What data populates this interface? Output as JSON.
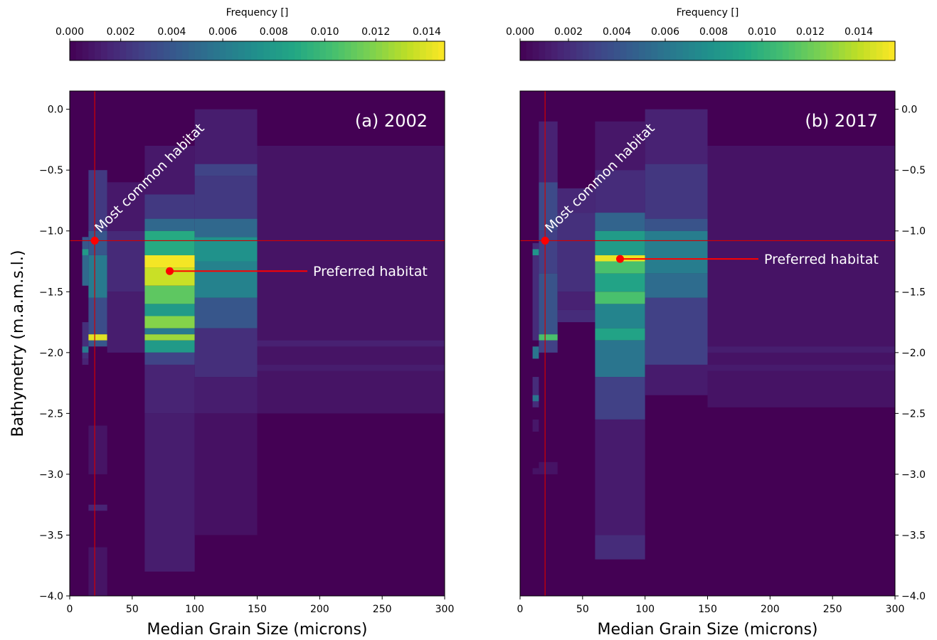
{
  "chart_data": [
    {
      "type": "heatmap",
      "panel_label": "(a) 2002",
      "xlabel": "Median Grain Size (microns)",
      "ylabel": "Bathymetry (m.a.m.s.l.)",
      "xlim": [
        0,
        300
      ],
      "ylim": [
        -4.0,
        0.15
      ],
      "xticks": [
        0,
        50,
        100,
        150,
        200,
        250,
        300
      ],
      "yticks": [
        0.0,
        -0.5,
        -1.0,
        -1.5,
        -2.0,
        -2.5,
        -3.0,
        -3.5,
        -4.0
      ],
      "ytick_side": "left",
      "colorbar": {
        "label": "Frequency []",
        "range": [
          0,
          0.0147
        ],
        "ticks": [
          "0.000",
          "0.002",
          "0.004",
          "0.006",
          "0.008",
          "0.010",
          "0.012",
          "0.014"
        ],
        "colormap": "viridis"
      },
      "columns": [
        {
          "x0": 10,
          "x1": 15,
          "cells": [
            [
              -1.05,
              -1.2,
              0.004
            ],
            [
              -1.15,
              -1.2,
              0.008
            ],
            [
              -1.2,
              -1.45,
              0.005
            ],
            [
              -1.75,
              -2.05,
              0.002
            ],
            [
              -1.95,
              -2.0,
              0.006
            ],
            [
              -2.05,
              -2.1,
              0.0015
            ]
          ]
        },
        {
          "x0": 15,
          "x1": 30,
          "cells": [
            [
              -0.5,
              -1.0,
              0.0025
            ],
            [
              -1.0,
              -1.2,
              0.004
            ],
            [
              -1.2,
              -1.55,
              0.006
            ],
            [
              -1.55,
              -1.85,
              0.0035
            ],
            [
              -1.85,
              -1.9,
              0.014
            ],
            [
              -1.9,
              -1.95,
              0.004
            ],
            [
              -2.6,
              -3.0,
              0.0008
            ],
            [
              -3.25,
              -3.3,
              0.0015
            ],
            [
              -3.6,
              -4.0,
              0.0008
            ]
          ]
        },
        {
          "x0": 30,
          "x1": 60,
          "cells": [
            [
              -0.6,
              -1.0,
              0.001
            ],
            [
              -1.0,
              -1.5,
              0.0018
            ],
            [
              -1.5,
              -2.0,
              0.0012
            ]
          ]
        },
        {
          "x0": 60,
          "x1": 100,
          "cells": [
            [
              -0.3,
              -0.7,
              0.001
            ],
            [
              -0.7,
              -0.9,
              0.0025
            ],
            [
              -0.9,
              -1.0,
              0.005
            ],
            [
              -1.0,
              -1.2,
              0.009
            ],
            [
              -1.2,
              -1.3,
              0.0145
            ],
            [
              -1.3,
              -1.45,
              0.0135
            ],
            [
              -1.45,
              -1.6,
              0.011
            ],
            [
              -1.6,
              -1.7,
              0.008
            ],
            [
              -1.7,
              -1.8,
              0.012
            ],
            [
              -1.8,
              -1.85,
              0.006
            ],
            [
              -1.85,
              -1.9,
              0.0125
            ],
            [
              -1.9,
              -2.0,
              0.008
            ],
            [
              -2.0,
              -2.1,
              0.003
            ],
            [
              -2.1,
              -2.5,
              0.0015
            ],
            [
              -2.5,
              -3.8,
              0.0012
            ]
          ]
        },
        {
          "x0": 100,
          "x1": 150,
          "cells": [
            [
              0.0,
              -0.45,
              0.0012
            ],
            [
              -0.45,
              -0.55,
              0.003
            ],
            [
              -0.55,
              -0.9,
              0.0025
            ],
            [
              -0.9,
              -1.05,
              0.005
            ],
            [
              -1.05,
              -1.25,
              0.0075
            ],
            [
              -1.25,
              -1.55,
              0.0065
            ],
            [
              -1.55,
              -1.8,
              0.004
            ],
            [
              -1.8,
              -2.2,
              0.002
            ],
            [
              -2.2,
              -2.5,
              0.0012
            ],
            [
              -2.5,
              -3.5,
              0.0007
            ]
          ]
        },
        {
          "x0": 150,
          "x1": 300,
          "cells": [
            [
              -0.3,
              -2.5,
              0.0008
            ],
            [
              -1.9,
              -1.95,
              0.0014
            ],
            [
              -2.1,
              -2.15,
              0.0012
            ]
          ]
        }
      ],
      "vline_x": 20,
      "hline_y": -1.08,
      "annotations": [
        {
          "text": "Most common habitat",
          "x": 20,
          "y": -1.08
        },
        {
          "text": "Preferred habitat",
          "x": 80,
          "y": -1.33
        }
      ]
    },
    {
      "type": "heatmap",
      "panel_label": "(b) 2017",
      "xlabel": "Median Grain Size (microns)",
      "ylabel": "",
      "xlim": [
        0,
        300
      ],
      "ylim": [
        -4.0,
        0.15
      ],
      "xticks": [
        0,
        50,
        100,
        150,
        200,
        250,
        300
      ],
      "yticks": [
        0.0,
        -0.5,
        -1.0,
        -1.5,
        -2.0,
        -2.5,
        -3.0,
        -3.5,
        -4.0
      ],
      "ytick_side": "right",
      "colorbar": {
        "label": "Frequency []",
        "range": [
          0,
          0.0155
        ],
        "ticks": [
          "0.000",
          "0.002",
          "0.004",
          "0.006",
          "0.008",
          "0.010",
          "0.012",
          "0.014"
        ],
        "colormap": "viridis"
      },
      "columns": [
        {
          "x0": 10,
          "x1": 15,
          "cells": [
            [
              -1.1,
              -1.9,
              0.002
            ],
            [
              -1.15,
              -1.2,
              0.008
            ],
            [
              -1.95,
              -2.05,
              0.006
            ],
            [
              -2.2,
              -2.45,
              0.002
            ],
            [
              -2.35,
              -2.4,
              0.006
            ],
            [
              -2.55,
              -2.65,
              0.001
            ],
            [
              -2.95,
              -3.0,
              0.0008
            ]
          ]
        },
        {
          "x0": 15,
          "x1": 30,
          "cells": [
            [
              -0.1,
              -0.6,
              0.0015
            ],
            [
              -0.6,
              -1.0,
              0.0035
            ],
            [
              -1.0,
              -1.35,
              0.003
            ],
            [
              -1.35,
              -1.85,
              0.004
            ],
            [
              -1.85,
              -1.9,
              0.011
            ],
            [
              -1.9,
              -2.0,
              0.003
            ],
            [
              -2.9,
              -3.0,
              0.0008
            ]
          ]
        },
        {
          "x0": 30,
          "x1": 60,
          "cells": [
            [
              -0.65,
              -0.85,
              0.0018
            ],
            [
              -0.85,
              -1.5,
              0.0022
            ],
            [
              -1.5,
              -1.65,
              0.0015
            ],
            [
              -1.65,
              -1.75,
              0.002
            ]
          ]
        },
        {
          "x0": 60,
          "x1": 100,
          "cells": [
            [
              -0.1,
              -0.5,
              0.001
            ],
            [
              -0.5,
              -0.85,
              0.002
            ],
            [
              -0.85,
              -1.0,
              0.005
            ],
            [
              -1.0,
              -1.2,
              0.0085
            ],
            [
              -1.2,
              -1.25,
              0.015
            ],
            [
              -1.25,
              -1.35,
              0.011
            ],
            [
              -1.35,
              -1.5,
              0.009
            ],
            [
              -1.5,
              -1.6,
              0.011
            ],
            [
              -1.6,
              -1.8,
              0.007
            ],
            [
              -1.8,
              -1.9,
              0.009
            ],
            [
              -1.9,
              -2.2,
              0.006
            ],
            [
              -2.2,
              -2.55,
              0.003
            ],
            [
              -2.55,
              -3.5,
              0.0012
            ],
            [
              -3.5,
              -3.7,
              0.002
            ]
          ]
        },
        {
          "x0": 100,
          "x1": 150,
          "cells": [
            [
              0.0,
              -0.45,
              0.0015
            ],
            [
              -0.45,
              -0.9,
              0.0025
            ],
            [
              -0.9,
              -1.0,
              0.004
            ],
            [
              -1.0,
              -1.35,
              0.0065
            ],
            [
              -1.35,
              -1.55,
              0.0055
            ],
            [
              -1.55,
              -2.1,
              0.003
            ],
            [
              -2.1,
              -2.35,
              0.0012
            ]
          ]
        },
        {
          "x0": 150,
          "x1": 300,
          "cells": [
            [
              -0.3,
              -2.45,
              0.0008
            ],
            [
              -1.95,
              -2.0,
              0.0013
            ],
            [
              -2.1,
              -2.15,
              0.0012
            ]
          ]
        }
      ],
      "vline_x": 20,
      "hline_y": -1.08,
      "annotations": [
        {
          "text": "Most common habitat",
          "x": 20,
          "y": -1.08
        },
        {
          "text": "Preferred habitat",
          "x": 80,
          "y": -1.23
        }
      ]
    }
  ]
}
